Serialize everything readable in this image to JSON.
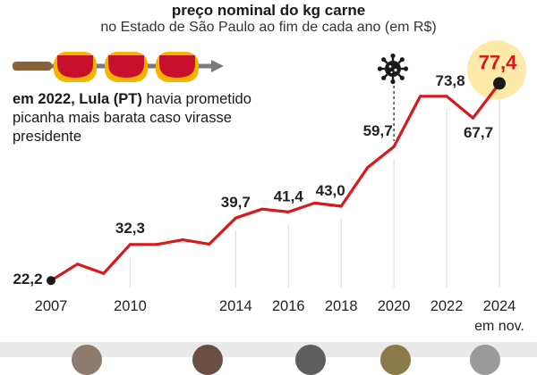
{
  "header": {
    "title": "preço nominal do kg carne",
    "subtitle": "no Estado de São Paulo ao fim de cada ano (em R$)"
  },
  "note": {
    "bold": "em 2022, Lula (PT)",
    "rest": " havia prometido picanha mais barata caso virasse presidente"
  },
  "icons": {
    "skewer": "meat-skewer-icon",
    "virus": "coronavirus-icon"
  },
  "colors": {
    "line": "#d7191c",
    "highlight_circle": "#fde9a8",
    "highlight_label": "#d7191c",
    "grid": "#d9d9d9",
    "meat": "#c8102e",
    "skewer_fat": "#f4b400"
  },
  "chart_data": {
    "type": "line",
    "title": "preço nominal do kg carne",
    "subtitle": "no Estado de São Paulo ao fim de cada ano (em R$)",
    "x": [
      2007,
      2008,
      2009,
      2010,
      2011,
      2012,
      2013,
      2014,
      2015,
      2016,
      2017,
      2018,
      2019,
      2020,
      2021,
      2022,
      2023,
      2024
    ],
    "series": [
      {
        "values": [
          22.2,
          26.8,
          24.2,
          32.3,
          32.3,
          33.6,
          32.4,
          39.7,
          42.2,
          41.4,
          43.9,
          43.0,
          53.8,
          59.7,
          73.8,
          73.8,
          67.7,
          77.4
        ]
      }
    ],
    "labels": [
      {
        "x": 2007,
        "text": "22,2"
      },
      {
        "x": 2010,
        "text": "32,3"
      },
      {
        "x": 2014,
        "text": "39,7"
      },
      {
        "x": 2016,
        "text": "41,4"
      },
      {
        "x": 2018,
        "text": "43,0"
      },
      {
        "x": 2020,
        "text": "59,7"
      },
      {
        "x": 2022,
        "text": "73,8"
      },
      {
        "x": 2023,
        "text": "67,7"
      },
      {
        "x": 2024,
        "text": "77,4",
        "highlight": true
      }
    ],
    "xticks": [
      "2007",
      "2010",
      "2014",
      "2016",
      "2018",
      "2020",
      "2022",
      "2024"
    ],
    "xtick_values": [
      2007,
      2010,
      2014,
      2016,
      2018,
      2020,
      2022,
      2024
    ],
    "x_note": "em nov.",
    "xlim": [
      2007,
      2024
    ],
    "ylim": [
      15,
      85
    ],
    "grid": "vertical",
    "event_marker": {
      "x": 2020,
      "icon": "coronavirus-icon"
    }
  }
}
